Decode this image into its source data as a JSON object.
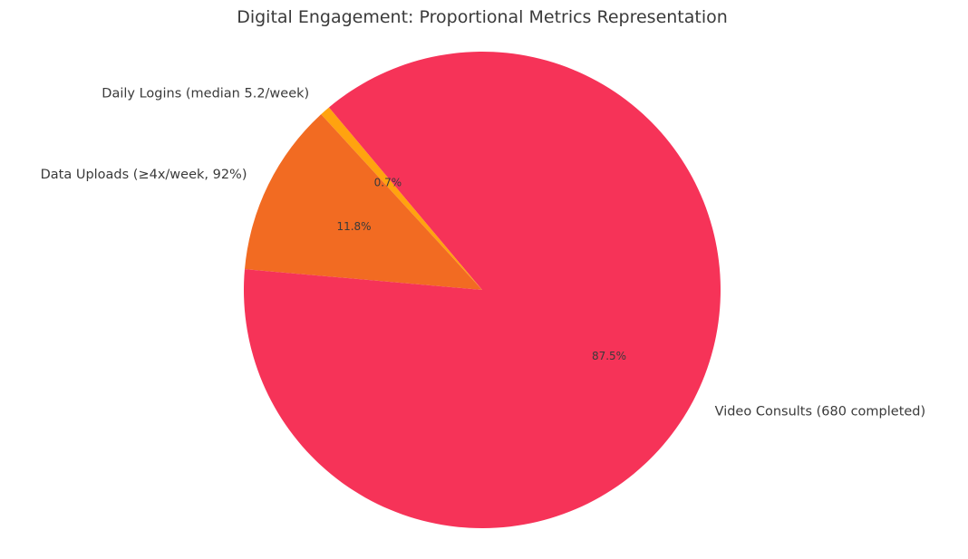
{
  "chart_data": {
    "type": "pie",
    "title": "Digital Engagement: Proportional Metrics Representation",
    "slices": [
      {
        "label": "Daily Logins (median 5.2/week)",
        "value": 0.7,
        "pct_label": "0.7%",
        "color": "#ffa30f"
      },
      {
        "label": "Data Uploads (≥4x/week, 92%)",
        "value": 11.8,
        "pct_label": "11.8%",
        "color": "#f26b22"
      },
      {
        "label": "Video Consults (680 completed)",
        "value": 87.5,
        "pct_label": "87.5%",
        "color": "#f63358"
      }
    ],
    "start_angle_deg": 130,
    "direction": "counterclockwise",
    "legend": "none"
  }
}
